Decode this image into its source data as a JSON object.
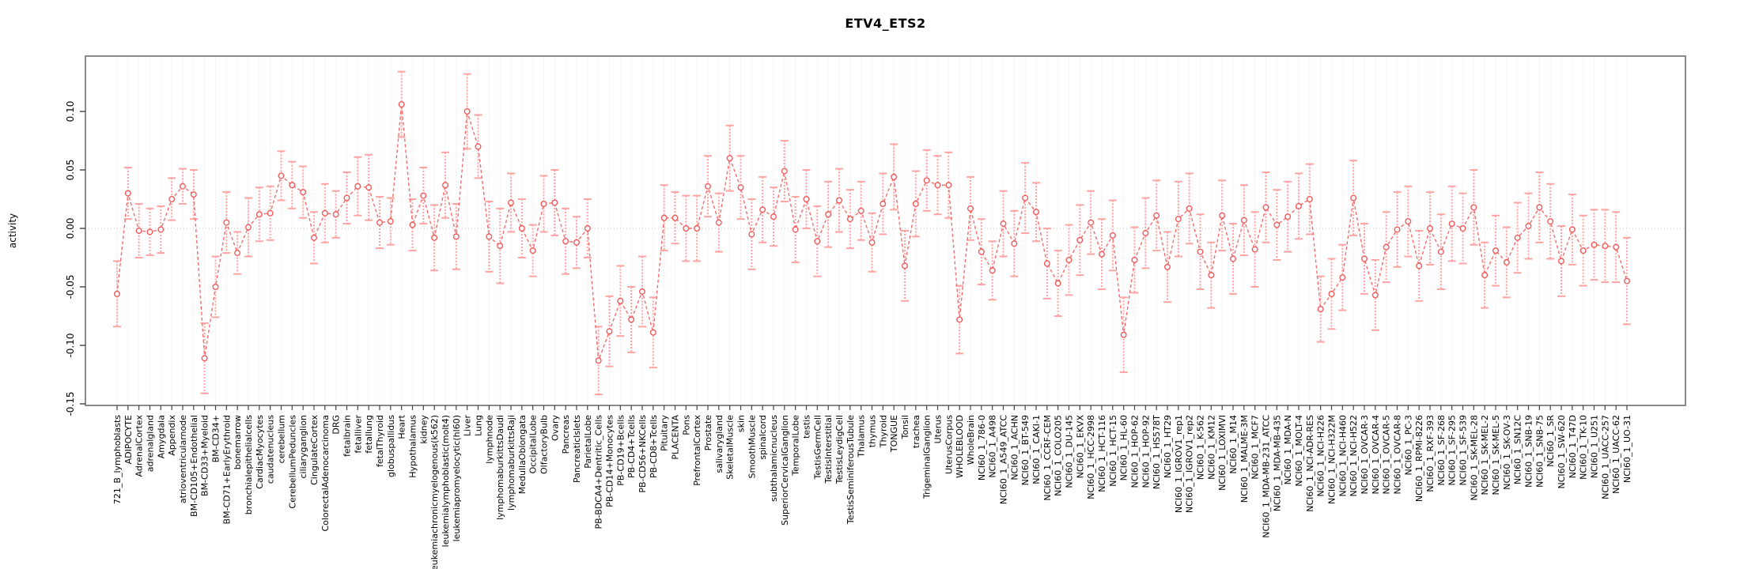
{
  "title": "ETV4_ETS2",
  "chart_data": {
    "type": "line",
    "title": "ETV4_ETS2",
    "xlabel": "",
    "ylabel": "activity",
    "ylim": [
      -0.151,
      0.147
    ],
    "yticks": [
      0.1,
      0.05,
      0.0,
      -0.05,
      -0.1,
      -0.15
    ],
    "grid": "vertical dotted per category, dotted horizontal zero line",
    "legend": "none",
    "point_style": "open circles with error bars",
    "point_color": "#f15b5b",
    "line_color": "#f26d6d",
    "errorbar_color": "#ffa3a3",
    "box_color": "#8a8a8a",
    "categories": [
      "721_B_lymphoblasts",
      "ADIPOCYTE",
      "AdrenalCortex",
      "adrenalgland",
      "Amygdala",
      "Appendix",
      "atrioventricularnode",
      "BM-CD105+Endothelial",
      "BM-CD33+Myeloid",
      "BM-CD34+",
      "BM-CD71+EarlyErythroid",
      "bonemarrow",
      "bronchialepithelialcells",
      "CardiacMyocytes",
      "caudatenucleus",
      "cerebellum",
      "CerebellumPeduncles",
      "ciliaryganglion",
      "CingulateCortex",
      "ColorectalAdenocarcinoma",
      "DRG",
      "fetalbrain",
      "fetalliver",
      "fetallung",
      "fetalThyroid",
      "globuspallidus",
      "Heart",
      "Hypothalamus",
      "kidney",
      "leukemiachronicmyelogenous(k562)",
      "leukemialymphoblastic(molt4)",
      "leukemiapromyelocytic(hl60)",
      "Liver",
      "Lung",
      "lymphnode",
      "lymphomaburkittsDaudi",
      "lymphomaburkittsRaji",
      "MedullaOblongata",
      "OccipitalLobe",
      "OlfactoryBulb",
      "Ovary",
      "Pancreas",
      "PancreaticIslets",
      "ParietalLobe",
      "PB-BDCA4+Dentritic_Cells",
      "PB-CD14+Monocytes",
      "PB-CD19+Bcells",
      "PB-CD4+Tcells",
      "PB-CD56+NKCells",
      "PB-CD8+Tcells",
      "Pituitary",
      "PLACENTA",
      "Pons",
      "PrefrontalCortex",
      "Prostate",
      "salivarygland",
      "SkeletalMuscle",
      "skin",
      "SmoothMuscle",
      "spinalcord",
      "subthalamicnucleus",
      "SuperiorCervicalGanglion",
      "TemporalLobe",
      "testis",
      "TestisGermCell",
      "TestisInterstitial",
      "TestisLeydigCell",
      "TestisSeminiferousTubule",
      "Thalamus",
      "thymus",
      "Thyroid",
      "TONGUE",
      "Tonsil",
      "trachea",
      "TrigeminalGanglion",
      "Uterus",
      "UterusCorpus",
      "WHOLEBLOOD",
      "WholeBrain",
      "NCI60_1_786-0",
      "NCI60_1_A498",
      "NCI60_1_A549_ATCC",
      "NCI60_1_ACHN",
      "NCI60_1_BT-549",
      "NCI60_1_CAKI-1",
      "NCI60_1_CCRF-CEM",
      "NCI60_1_COLO205",
      "NCI60_1_DU-145",
      "NCI60_1_EKVX",
      "NCI60_1_HCC-2998",
      "NCI60_1_HCT-116",
      "NCI60_1_HCT-15",
      "NCI60_1_HL-60",
      "NCI60_1_HOP-62",
      "NCI60_1_HOP-92",
      "NCI60_1_HS578T",
      "NCI60_1_HT29",
      "NCI60_1_IGROV1_rep1",
      "NCI60_1_IGROV1_rep2",
      "NCI60_1_K-562",
      "NCI60_1_KM12",
      "NCI60_1_LOXIMVI",
      "NCI60_1_M14",
      "NCI60_1_MALME-3M",
      "NCI60_1_MCF7",
      "NCI60_1_MDA-MB-231_ATCC",
      "NCI60_1_MDA-MB-435",
      "NCI60_1_MDA-N",
      "NCI60_1_MOLT-4",
      "NCI60_1_NCI-ADR-RES",
      "NCI60_1_NCI-H226",
      "NCI60_1_NCI-H322M",
      "NCI60_1_NCI-H460",
      "NCI60_1_NCI-H522",
      "NCI60_1_OVCAR-3",
      "NCI60_1_OVCAR-4",
      "NCI60_1_OVCAR-5",
      "NCI60_1_OVCAR-8",
      "NCI60_1_PC-3",
      "NCI60_1_RPMI-8226",
      "NCI60_1_RXF-393",
      "NCI60_1_SF-268",
      "NCI60_1_SF-295",
      "NCI60_1_SF-539",
      "NCI60_1_SK-MEL-28",
      "NCI60_1_SK-MEL-2",
      "NCI60_1_SK-MEL-5",
      "NCI60_1_SK-OV-3",
      "NCI60_1_SN12C",
      "NCI60_1_SNB-19",
      "NCI60_1_SNB-75",
      "NCI60_1_SR",
      "NCI60_1_SW-620",
      "NCI60_1_T47D",
      "NCI60_1_TK-10",
      "NCI60_1_U251",
      "NCI60_1_UACC-257",
      "NCI60_1_UACC-62",
      "NCI60_1_UO-31"
    ],
    "values": [
      -0.056,
      0.03,
      -0.002,
      -0.003,
      -0.001,
      0.025,
      0.036,
      0.029,
      -0.111,
      -0.05,
      0.005,
      -0.021,
      0.001,
      0.012,
      0.013,
      0.045,
      0.037,
      0.031,
      -0.008,
      0.013,
      0.012,
      0.026,
      0.036,
      0.035,
      0.005,
      0.006,
      0.106,
      0.003,
      0.028,
      -0.008,
      0.037,
      -0.007,
      0.1,
      0.07,
      -0.007,
      -0.015,
      0.022,
      0.0,
      -0.019,
      0.021,
      0.022,
      -0.011,
      -0.012,
      0.0,
      -0.113,
      -0.088,
      -0.062,
      -0.078,
      -0.054,
      -0.089,
      0.009,
      0.009,
      0.0,
      0.0,
      0.036,
      0.005,
      0.06,
      0.035,
      -0.005,
      0.016,
      0.01,
      0.049,
      -0.001,
      0.025,
      -0.011,
      0.012,
      0.024,
      0.008,
      0.015,
      -0.012,
      0.021,
      0.044,
      -0.032,
      0.021,
      0.041,
      0.037,
      0.037,
      -0.078,
      0.017,
      -0.02,
      -0.036,
      0.004,
      -0.013,
      0.026,
      0.014,
      -0.03,
      -0.047,
      -0.027,
      -0.01,
      0.005,
      -0.022,
      -0.006,
      -0.091,
      -0.027,
      -0.004,
      0.011,
      -0.033,
      0.008,
      0.017,
      -0.02,
      -0.04,
      0.011,
      -0.026,
      0.007,
      -0.018,
      0.018,
      0.003,
      0.01,
      0.019,
      0.025,
      -0.069,
      -0.056,
      -0.042,
      0.026,
      -0.026,
      -0.057,
      -0.016,
      -0.001,
      0.006,
      -0.032,
      0.0,
      -0.02,
      0.004,
      0.0,
      0.018,
      -0.04,
      -0.019,
      -0.029,
      -0.008,
      0.002,
      0.018,
      0.006,
      -0.028,
      -0.001,
      -0.019,
      -0.014,
      -0.015,
      -0.016,
      -0.045
    ],
    "errors": [
      0.028,
      0.022,
      0.023,
      0.02,
      0.02,
      0.018,
      0.015,
      0.021,
      0.03,
      0.026,
      0.026,
      0.018,
      0.025,
      0.023,
      0.023,
      0.021,
      0.02,
      0.022,
      0.022,
      0.025,
      0.02,
      0.022,
      0.025,
      0.028,
      0.022,
      0.02,
      0.028,
      0.022,
      0.024,
      0.028,
      0.028,
      0.028,
      0.032,
      0.027,
      0.03,
      0.032,
      0.025,
      0.025,
      0.022,
      0.024,
      0.028,
      0.028,
      0.022,
      0.025,
      0.029,
      0.03,
      0.03,
      0.028,
      0.03,
      0.03,
      0.028,
      0.022,
      0.028,
      0.028,
      0.026,
      0.025,
      0.028,
      0.027,
      0.03,
      0.028,
      0.025,
      0.026,
      0.028,
      0.025,
      0.03,
      0.028,
      0.027,
      0.025,
      0.025,
      0.025,
      0.026,
      0.028,
      0.03,
      0.028,
      0.026,
      0.025,
      0.028,
      0.029,
      0.027,
      0.028,
      0.025,
      0.028,
      0.028,
      0.03,
      0.025,
      0.03,
      0.028,
      0.03,
      0.03,
      0.027,
      0.03,
      0.03,
      0.032,
      0.028,
      0.03,
      0.03,
      0.03,
      0.032,
      0.03,
      0.032,
      0.028,
      0.03,
      0.03,
      0.03,
      0.032,
      0.03,
      0.03,
      0.03,
      0.028,
      0.03,
      0.028,
      0.03,
      0.028,
      0.032,
      0.03,
      0.03,
      0.03,
      0.032,
      0.03,
      0.03,
      0.031,
      0.032,
      0.032,
      0.03,
      0.032,
      0.028,
      0.03,
      0.03,
      0.03,
      0.028,
      0.03,
      0.032,
      0.03,
      0.03,
      0.03,
      0.03,
      0.031,
      0.03,
      0.037
    ]
  }
}
